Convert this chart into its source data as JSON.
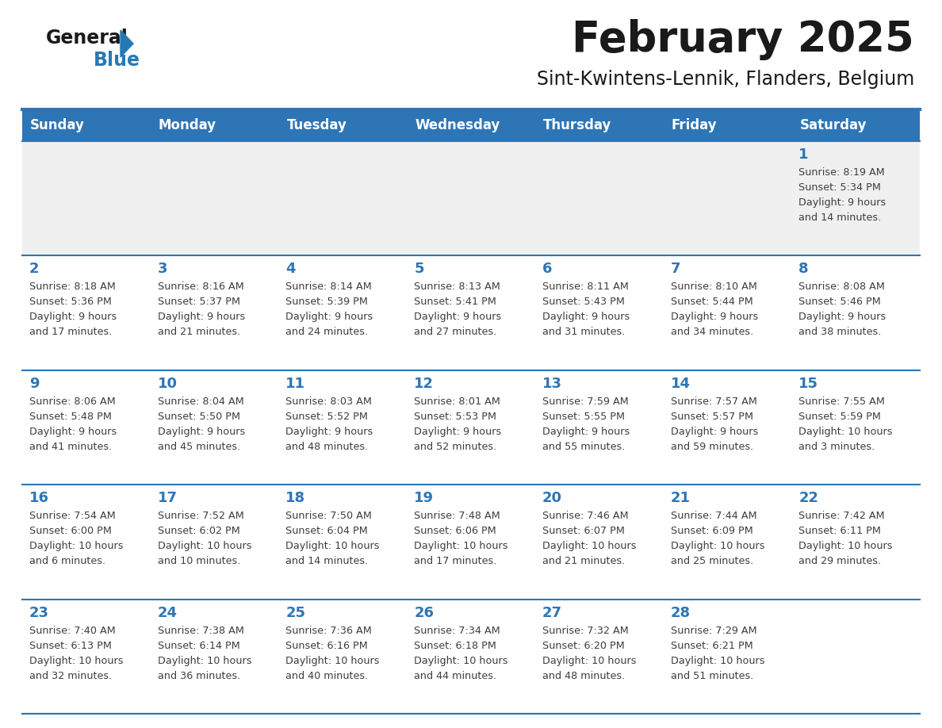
{
  "title": "February 2025",
  "subtitle": "Sint-Kwintens-Lennik, Flanders, Belgium",
  "days_of_week": [
    "Sunday",
    "Monday",
    "Tuesday",
    "Wednesday",
    "Thursday",
    "Friday",
    "Saturday"
  ],
  "header_bg": "#2E75B6",
  "header_text": "#FFFFFF",
  "cell_bg_white": "#FFFFFF",
  "cell_bg_gray": "#F0F0F0",
  "day_number_color": "#2E75B6",
  "text_color": "#3D3D3D",
  "separator_color": "#2E75B6",
  "title_color": "#1a1a1a",
  "logo_general_color": "#1a1a1a",
  "logo_blue_color": "#2779B5",
  "calendar_data": [
    [
      {
        "day": null,
        "sunrise": null,
        "sunset": null,
        "daylight": null
      },
      {
        "day": null,
        "sunrise": null,
        "sunset": null,
        "daylight": null
      },
      {
        "day": null,
        "sunrise": null,
        "sunset": null,
        "daylight": null
      },
      {
        "day": null,
        "sunrise": null,
        "sunset": null,
        "daylight": null
      },
      {
        "day": null,
        "sunrise": null,
        "sunset": null,
        "daylight": null
      },
      {
        "day": null,
        "sunrise": null,
        "sunset": null,
        "daylight": null
      },
      {
        "day": 1,
        "sunrise": "8:19 AM",
        "sunset": "5:34 PM",
        "daylight": "9 hours\nand 14 minutes."
      }
    ],
    [
      {
        "day": 2,
        "sunrise": "8:18 AM",
        "sunset": "5:36 PM",
        "daylight": "9 hours\nand 17 minutes."
      },
      {
        "day": 3,
        "sunrise": "8:16 AM",
        "sunset": "5:37 PM",
        "daylight": "9 hours\nand 21 minutes."
      },
      {
        "day": 4,
        "sunrise": "8:14 AM",
        "sunset": "5:39 PM",
        "daylight": "9 hours\nand 24 minutes."
      },
      {
        "day": 5,
        "sunrise": "8:13 AM",
        "sunset": "5:41 PM",
        "daylight": "9 hours\nand 27 minutes."
      },
      {
        "day": 6,
        "sunrise": "8:11 AM",
        "sunset": "5:43 PM",
        "daylight": "9 hours\nand 31 minutes."
      },
      {
        "day": 7,
        "sunrise": "8:10 AM",
        "sunset": "5:44 PM",
        "daylight": "9 hours\nand 34 minutes."
      },
      {
        "day": 8,
        "sunrise": "8:08 AM",
        "sunset": "5:46 PM",
        "daylight": "9 hours\nand 38 minutes."
      }
    ],
    [
      {
        "day": 9,
        "sunrise": "8:06 AM",
        "sunset": "5:48 PM",
        "daylight": "9 hours\nand 41 minutes."
      },
      {
        "day": 10,
        "sunrise": "8:04 AM",
        "sunset": "5:50 PM",
        "daylight": "9 hours\nand 45 minutes."
      },
      {
        "day": 11,
        "sunrise": "8:03 AM",
        "sunset": "5:52 PM",
        "daylight": "9 hours\nand 48 minutes."
      },
      {
        "day": 12,
        "sunrise": "8:01 AM",
        "sunset": "5:53 PM",
        "daylight": "9 hours\nand 52 minutes."
      },
      {
        "day": 13,
        "sunrise": "7:59 AM",
        "sunset": "5:55 PM",
        "daylight": "9 hours\nand 55 minutes."
      },
      {
        "day": 14,
        "sunrise": "7:57 AM",
        "sunset": "5:57 PM",
        "daylight": "9 hours\nand 59 minutes."
      },
      {
        "day": 15,
        "sunrise": "7:55 AM",
        "sunset": "5:59 PM",
        "daylight": "10 hours\nand 3 minutes."
      }
    ],
    [
      {
        "day": 16,
        "sunrise": "7:54 AM",
        "sunset": "6:00 PM",
        "daylight": "10 hours\nand 6 minutes."
      },
      {
        "day": 17,
        "sunrise": "7:52 AM",
        "sunset": "6:02 PM",
        "daylight": "10 hours\nand 10 minutes."
      },
      {
        "day": 18,
        "sunrise": "7:50 AM",
        "sunset": "6:04 PM",
        "daylight": "10 hours\nand 14 minutes."
      },
      {
        "day": 19,
        "sunrise": "7:48 AM",
        "sunset": "6:06 PM",
        "daylight": "10 hours\nand 17 minutes."
      },
      {
        "day": 20,
        "sunrise": "7:46 AM",
        "sunset": "6:07 PM",
        "daylight": "10 hours\nand 21 minutes."
      },
      {
        "day": 21,
        "sunrise": "7:44 AM",
        "sunset": "6:09 PM",
        "daylight": "10 hours\nand 25 minutes."
      },
      {
        "day": 22,
        "sunrise": "7:42 AM",
        "sunset": "6:11 PM",
        "daylight": "10 hours\nand 29 minutes."
      }
    ],
    [
      {
        "day": 23,
        "sunrise": "7:40 AM",
        "sunset": "6:13 PM",
        "daylight": "10 hours\nand 32 minutes."
      },
      {
        "day": 24,
        "sunrise": "7:38 AM",
        "sunset": "6:14 PM",
        "daylight": "10 hours\nand 36 minutes."
      },
      {
        "day": 25,
        "sunrise": "7:36 AM",
        "sunset": "6:16 PM",
        "daylight": "10 hours\nand 40 minutes."
      },
      {
        "day": 26,
        "sunrise": "7:34 AM",
        "sunset": "6:18 PM",
        "daylight": "10 hours\nand 44 minutes."
      },
      {
        "day": 27,
        "sunrise": "7:32 AM",
        "sunset": "6:20 PM",
        "daylight": "10 hours\nand 48 minutes."
      },
      {
        "day": 28,
        "sunrise": "7:29 AM",
        "sunset": "6:21 PM",
        "daylight": "10 hours\nand 51 minutes."
      },
      {
        "day": null,
        "sunrise": null,
        "sunset": null,
        "daylight": null
      }
    ]
  ]
}
